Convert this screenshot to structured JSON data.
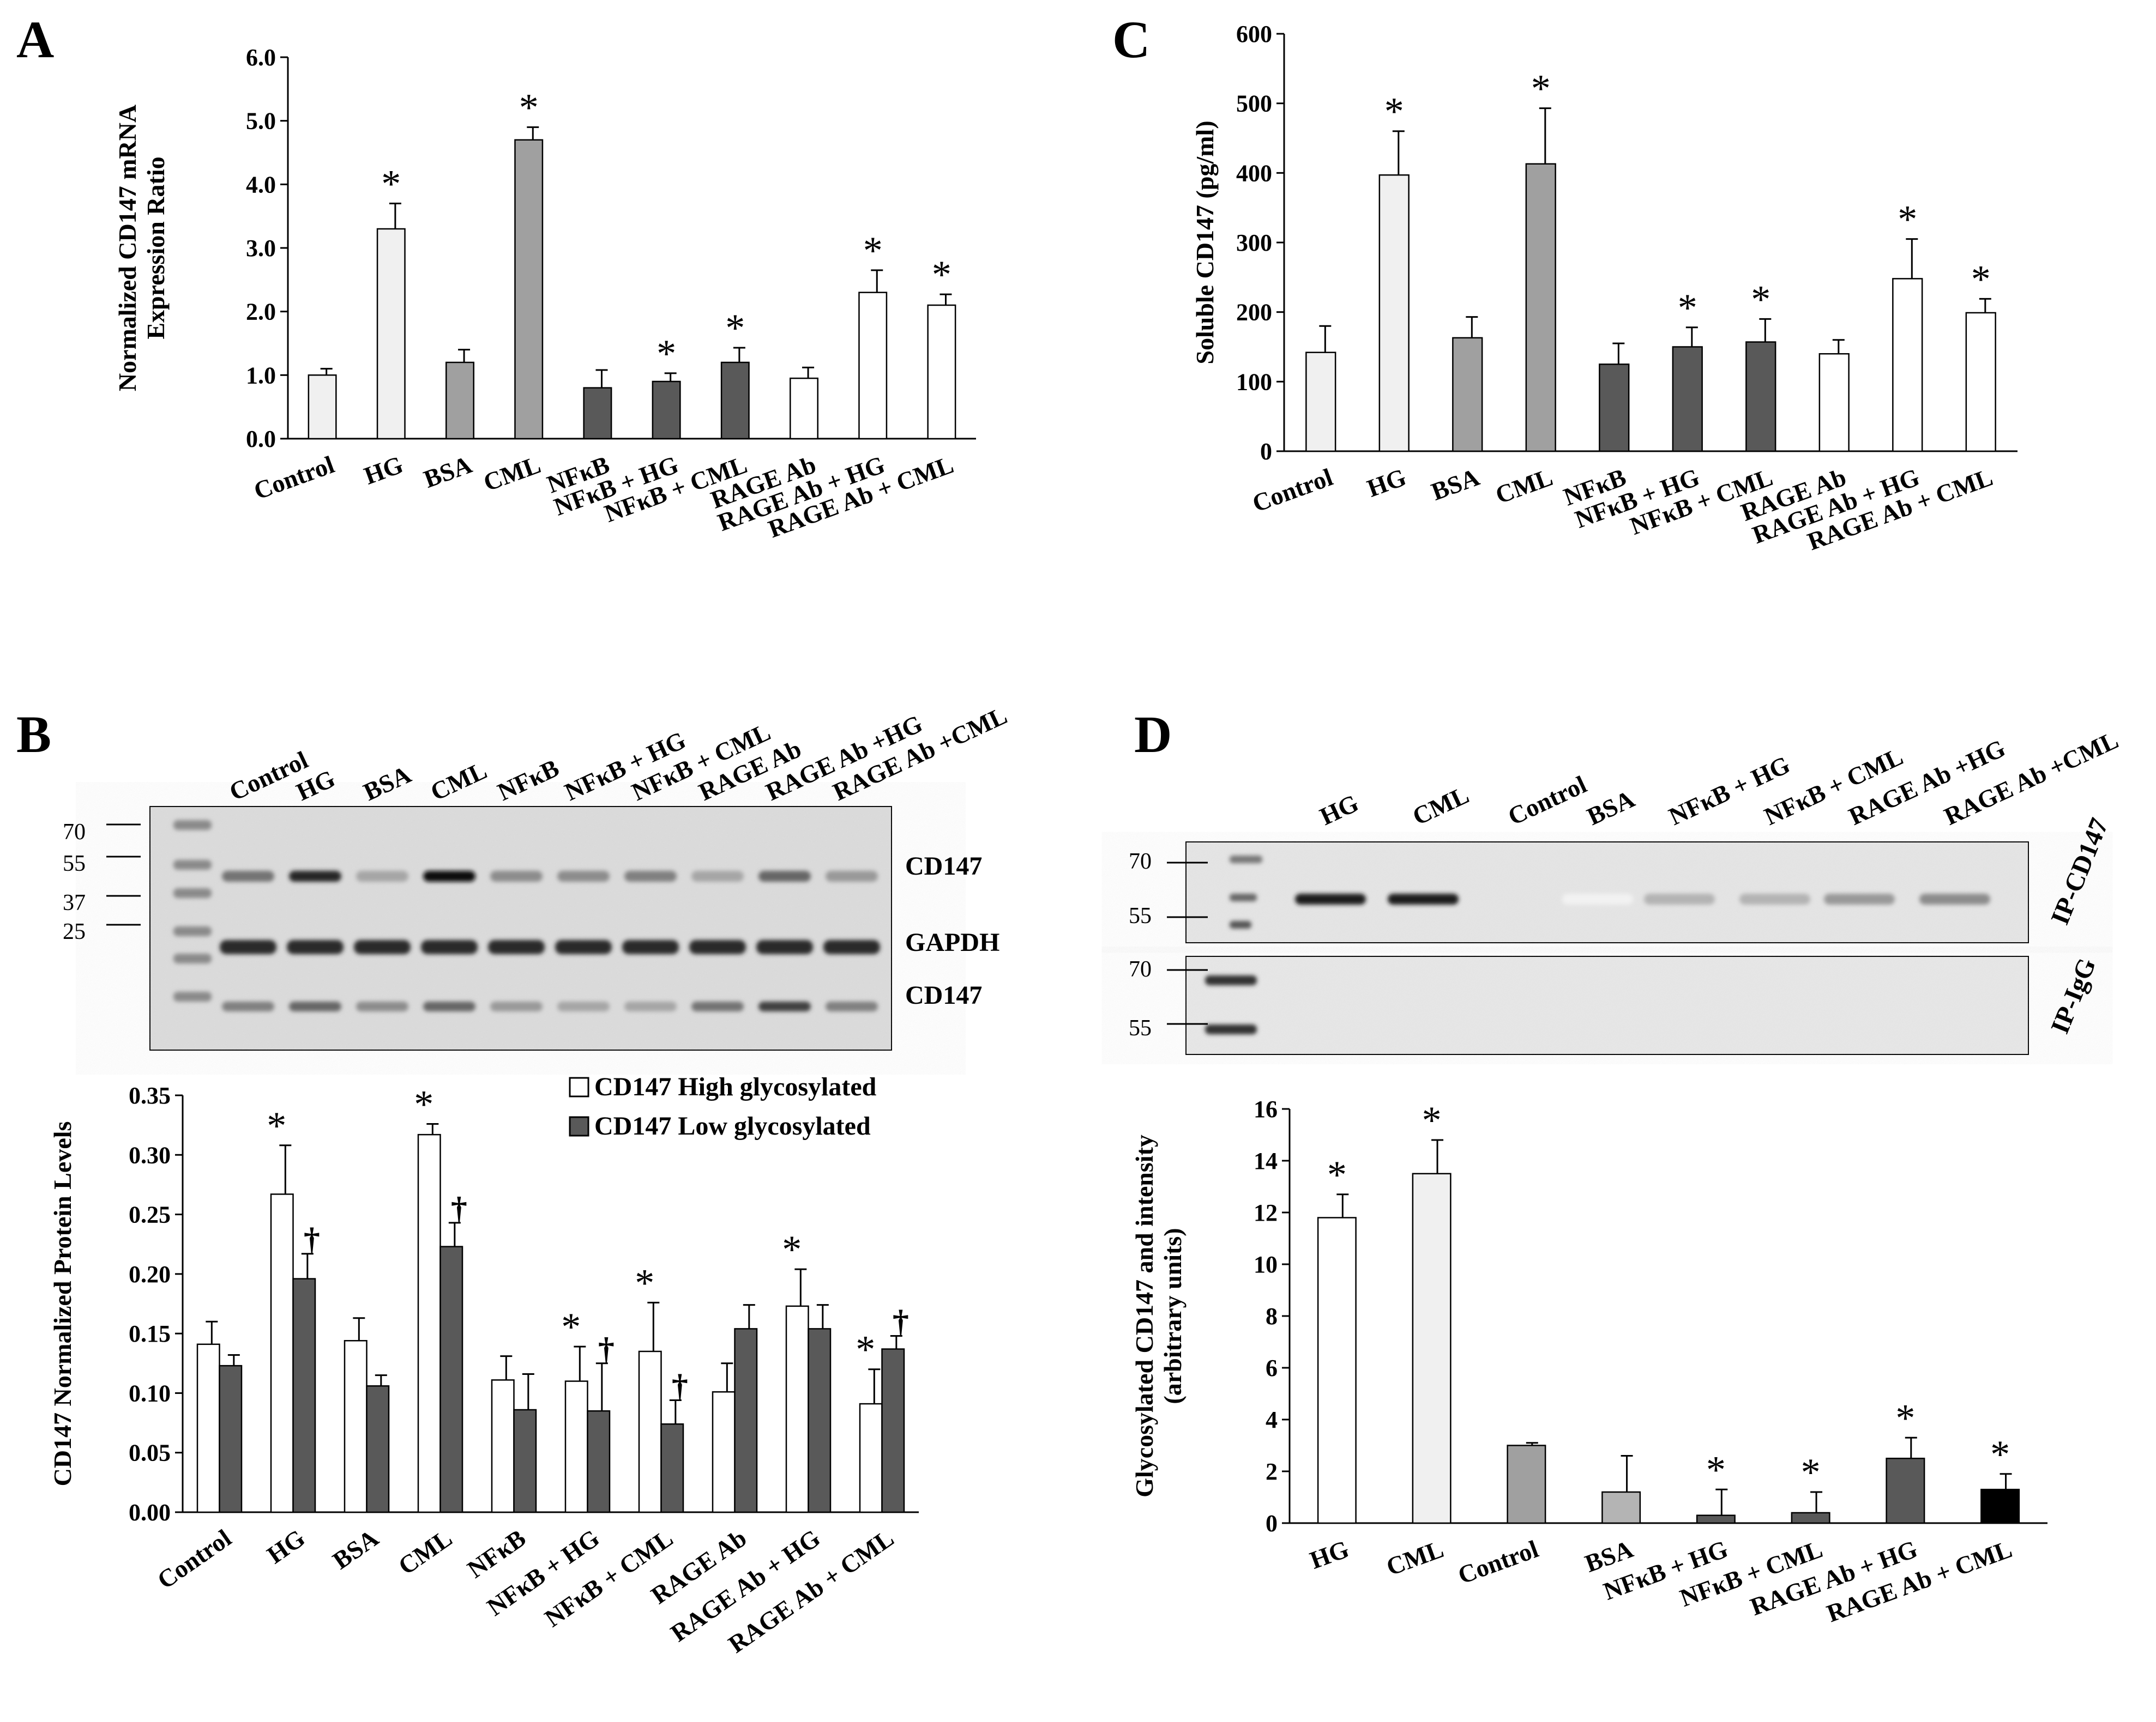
{
  "panels": {
    "A": {
      "letter": "A"
    },
    "B": {
      "letter": "B"
    },
    "C": {
      "letter": "C"
    },
    "D": {
      "letter": "D"
    }
  },
  "colors": {
    "white": "#ffffff",
    "very_light": "#f0f0f0",
    "light": "#b4b4b4",
    "mid": "#a0a0a0",
    "dark": "#595959",
    "black": "#000000"
  },
  "blot_b": {
    "lanes": [
      "Control",
      "HG",
      "BSA",
      "CML",
      "NFκB",
      "NFκB + HG",
      "NFκB + CML",
      "RAGE Ab",
      "RAGE Ab +HG",
      "RAGE Ab +CML"
    ],
    "markers": [
      "70",
      "55",
      "37",
      "25"
    ],
    "band_labels": [
      "CD147",
      "GAPDH",
      "CD147"
    ]
  },
  "blot_d": {
    "lanes": [
      "HG",
      "CML",
      "Control",
      "BSA",
      "NFκB + HG",
      "NFκB + CML",
      "RAGE Ab +HG",
      "RAGE Ab +CML"
    ],
    "markers_top": [
      "70",
      "55"
    ],
    "markers_bottom": [
      "70",
      "55"
    ],
    "row_labels": [
      "IP-CD147",
      "IP-IgG"
    ]
  },
  "chart_data": [
    {
      "id": "A",
      "type": "bar",
      "title": "",
      "ylabel": [
        "Normalized CD147 mRNA",
        "Expression Ratio"
      ],
      "xlabel": "",
      "ylim": [
        0,
        6
      ],
      "yticks": [
        "0.0",
        "1.0",
        "2.0",
        "3.0",
        "4.0",
        "5.0",
        "6.0"
      ],
      "categories": [
        "Control",
        "HG",
        "BSA",
        "CML",
        "NFκB",
        "NFκB + HG",
        "NFκB + CML",
        "RAGE Ab",
        "RAGE Ab + HG",
        "RAGE Ab + CML"
      ],
      "values": [
        1.0,
        3.3,
        1.2,
        4.7,
        0.8,
        0.9,
        1.2,
        0.95,
        2.3,
        2.1
      ],
      "errors": [
        0.1,
        0.4,
        0.2,
        0.2,
        0.28,
        0.13,
        0.23,
        0.17,
        0.35,
        0.17
      ],
      "bar_colors": [
        "#f0f0f0",
        "#f0f0f0",
        "#a0a0a0",
        "#a0a0a0",
        "#595959",
        "#595959",
        "#595959",
        "#ffffff",
        "#ffffff",
        "#ffffff"
      ],
      "significance": [
        "",
        "*",
        "",
        "*",
        "",
        "*",
        "*",
        "",
        "*",
        "*"
      ]
    },
    {
      "id": "C",
      "type": "bar",
      "title": "",
      "ylabel": [
        "Soluble CD147 (pg/ml)"
      ],
      "xlabel": "",
      "ylim": [
        0,
        600
      ],
      "yticks": [
        "0",
        "100",
        "200",
        "300",
        "400",
        "500",
        "600"
      ],
      "categories": [
        "Control",
        "HG",
        "BSA",
        "CML",
        "NFκB",
        "NFκB + HG",
        "NFκB + CML",
        "RAGE Ab",
        "RAGE Ab + HG",
        "RAGE Ab + CML"
      ],
      "values": [
        142,
        397,
        163,
        413,
        125,
        150,
        157,
        140,
        248,
        199
      ],
      "errors": [
        38,
        63,
        30,
        80,
        30,
        28,
        33,
        20,
        57,
        20
      ],
      "bar_colors": [
        "#f0f0f0",
        "#f0f0f0",
        "#a0a0a0",
        "#a0a0a0",
        "#595959",
        "#595959",
        "#595959",
        "#ffffff",
        "#ffffff",
        "#ffffff"
      ],
      "significance": [
        "",
        "*",
        "",
        "*",
        "",
        "*",
        "*",
        "",
        "*",
        "*"
      ]
    },
    {
      "id": "B",
      "type": "bar",
      "title": "",
      "ylabel": [
        "CD147 Normalized Protein Levels"
      ],
      "xlabel": "",
      "ylim": [
        0,
        0.35
      ],
      "yticks": [
        "0.00",
        "0.05",
        "0.10",
        "0.15",
        "0.20",
        "0.25",
        "0.30",
        "0.35"
      ],
      "categories": [
        "Control",
        "HG",
        "BSA",
        "CML",
        "NFκB",
        "NFκB + HG",
        "NFκB + CML",
        "RAGE Ab",
        "RAGE Ab + HG",
        "RAGE Ab + CML"
      ],
      "series": [
        {
          "name": "CD147 High glycosylated",
          "color": "#ffffff",
          "values": [
            0.141,
            0.267,
            0.144,
            0.317,
            0.111,
            0.11,
            0.135,
            0.101,
            0.173,
            0.091
          ],
          "errors": [
            0.019,
            0.041,
            0.019,
            0.009,
            0.02,
            0.029,
            0.041,
            0.024,
            0.031,
            0.029
          ],
          "significance": [
            "",
            "*",
            "",
            "*",
            "",
            "*",
            "*",
            "",
            "*",
            "*"
          ]
        },
        {
          "name": "CD147 Low glycosylated",
          "color": "#595959",
          "values": [
            0.123,
            0.196,
            0.106,
            0.223,
            0.086,
            0.085,
            0.074,
            0.154,
            0.154,
            0.137
          ],
          "errors": [
            0.009,
            0.021,
            0.009,
            0.02,
            0.03,
            0.04,
            0.02,
            0.02,
            0.02,
            0.011
          ],
          "significance": [
            "",
            "†",
            "",
            "†",
            "",
            "†",
            "†",
            "",
            "",
            "†"
          ]
        }
      ],
      "legend_position": "top-right"
    },
    {
      "id": "D",
      "type": "bar",
      "title": "",
      "ylabel": [
        "Glycosylated CD147 and intensity",
        "(arbitrary units)"
      ],
      "xlabel": "",
      "ylim": [
        0,
        16
      ],
      "yticks": [
        "0",
        "2",
        "4",
        "6",
        "8",
        "10",
        "12",
        "14",
        "16"
      ],
      "categories": [
        "HG",
        "CML",
        "Control",
        "BSA",
        "NFκB + HG",
        "NFκB + CML",
        "RAGE Ab + HG",
        "RAGE Ab + CML"
      ],
      "values": [
        11.8,
        13.5,
        3.0,
        1.2,
        0.3,
        0.4,
        2.5,
        1.3
      ],
      "errors": [
        0.9,
        1.3,
        0.1,
        1.4,
        1.0,
        0.8,
        0.8,
        0.6
      ],
      "bar_colors": [
        "#ffffff",
        "#f0f0f0",
        "#a0a0a0",
        "#b4b4b4",
        "#595959",
        "#595959",
        "#595959",
        "#000000"
      ],
      "significance": [
        "*",
        "*",
        "",
        "",
        "*",
        "*",
        "*",
        "*"
      ]
    }
  ]
}
